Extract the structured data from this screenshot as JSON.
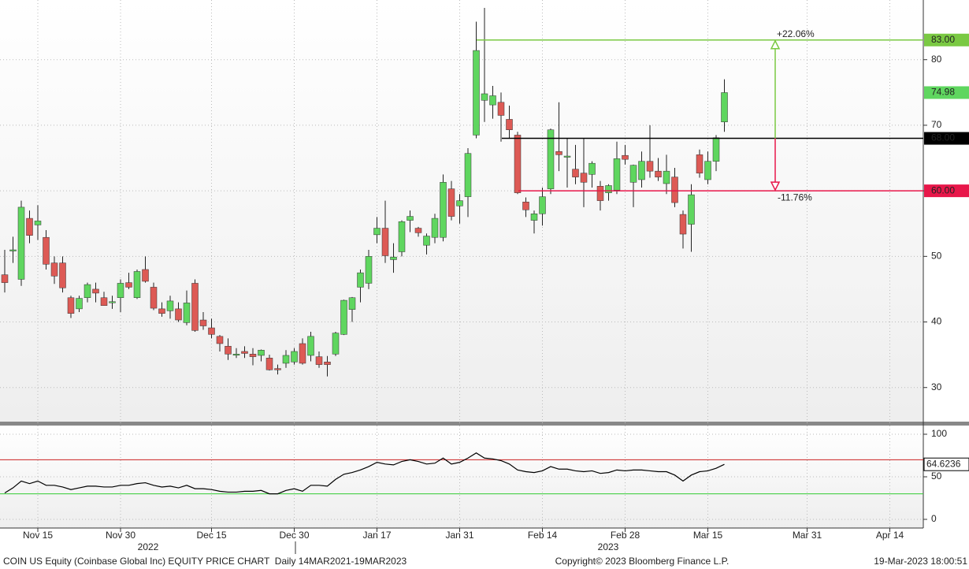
{
  "chart_data": [
    {
      "type": "candlestick",
      "categories": [
        null,
        null,
        null,
        null,
        "Nov 15",
        null,
        null,
        null,
        null,
        null,
        null,
        null,
        null,
        null,
        "Nov 30",
        null,
        null,
        null,
        null,
        null,
        null,
        null,
        null,
        null,
        null,
        "Dec 15",
        null,
        null,
        null,
        null,
        null,
        null,
        null,
        null,
        null,
        "Dec 30",
        null,
        null,
        null,
        null,
        null,
        null,
        null,
        null,
        null,
        "Jan 17",
        null,
        null,
        null,
        null,
        null,
        null,
        null,
        null,
        null,
        "Jan 31",
        null,
        null,
        null,
        null,
        null,
        null,
        null,
        null,
        null,
        "Feb 14",
        null,
        null,
        null,
        null,
        null,
        null,
        null,
        null,
        null,
        "Feb 28",
        null,
        null,
        null,
        null,
        null,
        null,
        null,
        null,
        null,
        "Mar 15",
        null,
        null,
        null,
        null,
        null,
        null,
        null,
        null,
        null,
        null,
        null,
        "Mar 31",
        null,
        null,
        null,
        null,
        null,
        null,
        null,
        null,
        null,
        "Apr 14",
        null,
        null,
        null
      ],
      "x_group_labels": [
        "2022",
        "2023"
      ],
      "open": [
        47.2,
        51,
        46.5,
        55.8,
        54.8,
        52.9,
        49,
        49,
        43.7,
        42,
        43.7,
        45,
        43.7,
        43.1,
        43.7,
        46,
        43.7,
        48,
        45.3,
        42,
        41.7,
        42,
        39.9,
        45.9,
        40.3,
        39.1,
        37.8,
        36.3,
        35,
        35.5,
        35.1,
        34.9,
        34.5,
        32.9,
        33.7,
        33.9,
        36.7,
        34.9,
        34.7,
        33.9,
        35.1,
        38.1,
        41.9,
        45.3,
        45.9,
        53.3,
        54.3,
        49.5,
        50.7,
        55.5,
        54.3,
        51.7,
        52.9,
        52.9,
        60.3,
        57.7,
        59.1,
        68.5,
        73.8,
        73.1,
        73.5,
        70.9,
        68.5,
        58.3,
        55.5,
        56.5,
        60.3,
        66,
        65.2,
        63.3,
        62.7,
        62.5,
        60.7,
        59.7,
        60.1,
        65.4,
        61.3,
        61.7,
        64.5,
        63,
        61.1,
        62.1,
        56.4,
        54.9,
        65.5,
        61.7,
        64.5,
        70.5,
        null,
        null,
        null,
        null,
        null,
        null,
        null,
        null,
        null,
        null,
        null,
        null,
        null,
        null,
        null,
        null,
        null,
        null,
        null,
        null,
        null,
        null,
        null
      ],
      "high": [
        51,
        53,
        58.5,
        57,
        57.8,
        54,
        50,
        50,
        44,
        44,
        46,
        46,
        44.6,
        44,
        46.5,
        47.5,
        48,
        50,
        46,
        43,
        44,
        43,
        44.8,
        46.5,
        41.5,
        40.5,
        38,
        37.5,
        36,
        36.3,
        36,
        35.8,
        35,
        33.5,
        35.7,
        36,
        37.5,
        38.5,
        35.5,
        34.8,
        38.5,
        43.4,
        43.8,
        48,
        51,
        56,
        58.5,
        52,
        55.5,
        57,
        54.5,
        53.5,
        56.5,
        62.5,
        61.5,
        59.5,
        66.5,
        85.8,
        87.9,
        76,
        75,
        73,
        69,
        59,
        57,
        60.5,
        69.5,
        73.5,
        68,
        67,
        68,
        64.5,
        61.5,
        61,
        67.5,
        67,
        64,
        66,
        70,
        65,
        65.5,
        63.5,
        57,
        61,
        66.3,
        66,
        68.5,
        77,
        null,
        null,
        null,
        null,
        null,
        null,
        null,
        null,
        null,
        null,
        null,
        null,
        null,
        null,
        null,
        null,
        null,
        null,
        null,
        null,
        null,
        null,
        null
      ],
      "low": [
        44.5,
        49,
        45.5,
        52,
        52.5,
        48,
        45.8,
        44.5,
        40.6,
        41.5,
        43,
        43,
        42.5,
        42,
        41.5,
        45,
        43.5,
        46,
        41.8,
        40.8,
        40.5,
        40,
        39.5,
        38.5,
        38.8,
        37.5,
        35.5,
        34.2,
        34.5,
        34.5,
        33.4,
        34,
        32.6,
        32,
        33,
        33.5,
        33.5,
        34,
        33,
        31.7,
        34.8,
        38,
        40,
        43,
        45,
        52,
        49,
        47.5,
        50,
        53.7,
        53,
        50.3,
        52,
        52.3,
        55.5,
        55,
        56,
        68,
        70.5,
        71,
        67.5,
        68,
        59.5,
        56,
        53.5,
        54.7,
        59.5,
        63,
        60.5,
        61,
        57.5,
        60.5,
        57,
        58.5,
        59.5,
        64,
        57.5,
        60.5,
        62,
        61.5,
        59.5,
        57.5,
        51.2,
        50.7,
        62,
        61,
        63,
        69,
        null,
        null,
        null,
        null,
        null,
        null,
        null,
        null,
        null,
        null,
        null,
        null,
        null,
        null,
        null,
        null,
        null,
        null,
        null,
        null,
        null,
        null,
        null
      ],
      "close": [
        46,
        51,
        57.5,
        53.2,
        55.4,
        48.8,
        47,
        45.2,
        41.3,
        43.6,
        45.7,
        44.4,
        42.5,
        43.1,
        45.9,
        45.3,
        47.7,
        46.2,
        42.1,
        41.3,
        43.2,
        40.3,
        42.9,
        38.7,
        39.4,
        38.1,
        36.7,
        35.1,
        35.1,
        35.2,
        34.7,
        35.7,
        32.7,
        32.7,
        34.9,
        35.5,
        33.7,
        37.8,
        33.5,
        33.5,
        38.3,
        43.3,
        43.7,
        47.5,
        50,
        54.3,
        50.1,
        49.9,
        55.3,
        56.1,
        53.6,
        53.1,
        55.8,
        61.3,
        56.1,
        58.5,
        65.7,
        81.4,
        74.8,
        74.5,
        71.5,
        69.3,
        59.7,
        57.1,
        56.5,
        59.1,
        69.3,
        65.5,
        65.3,
        62.1,
        61.3,
        64.2,
        58.5,
        60.8,
        64.9,
        64.8,
        63.9,
        64.5,
        63,
        62.1,
        63,
        58.2,
        53.4,
        59.4,
        62.7,
        64.5,
        68.1,
        74.98,
        null,
        null,
        null,
        null,
        null,
        null,
        null,
        null,
        null,
        null,
        null,
        null,
        null,
        null,
        null,
        null,
        null,
        null,
        null,
        null,
        null,
        null,
        null
      ],
      "up_color": "#5fd65f",
      "down_color": "#dd5a55",
      "ylim": [
        24.8,
        89.1
      ],
      "yticks": [
        30,
        40,
        50,
        60,
        70,
        80
      ],
      "grid": true,
      "hlines": [
        {
          "value": 83,
          "label": "83.00",
          "color": "#7ac943"
        },
        {
          "value": 68,
          "label": "68.00",
          "color": "#000000"
        },
        {
          "value": 60,
          "label": "60.00",
          "color": "#e8174a"
        }
      ],
      "annotations": [
        "+22.06%",
        "-11.76%"
      ]
    },
    {
      "type": "line",
      "values": [
        31,
        37,
        45,
        42,
        45,
        40,
        40,
        38,
        35,
        37,
        39,
        39,
        38,
        38,
        40,
        40,
        42,
        43,
        40,
        38,
        39,
        37,
        40,
        36,
        36,
        35,
        33,
        32,
        32,
        33,
        33,
        34,
        30,
        30,
        34,
        36,
        33,
        40,
        40,
        39,
        47,
        53,
        55,
        58,
        62,
        67,
        65,
        64,
        68,
        70,
        68,
        65,
        66,
        72,
        65,
        67,
        72,
        78,
        72,
        71,
        69,
        65,
        58,
        56,
        55,
        57,
        62,
        59,
        59,
        57,
        56,
        57,
        54,
        55,
        58,
        57,
        58,
        58,
        57,
        56,
        56,
        52,
        45,
        52,
        56,
        57,
        60,
        64.6236,
        null,
        null,
        null,
        null,
        null,
        null,
        null,
        null,
        null,
        null,
        null,
        null,
        null,
        null,
        null,
        null,
        null,
        null,
        null,
        null,
        null,
        null,
        null
      ],
      "color": "#000000",
      "ylim": [
        -10.2,
        110.2
      ],
      "yticks": [
        0,
        50,
        100
      ],
      "grid": true,
      "hlines": [
        {
          "value": 70,
          "color": "#cc2222"
        },
        {
          "value": 30,
          "color": "#33cc33"
        }
      ]
    }
  ],
  "footer": {
    "left": "COIN US Equity (Coinbase Global Inc) EQUITY PRICE CHART  Daily 14MAR2021-19MAR2023",
    "center": "Copyright© 2023 Bloomberg Finance L.P.",
    "right": "19-Mar-2023 18:00:51"
  }
}
